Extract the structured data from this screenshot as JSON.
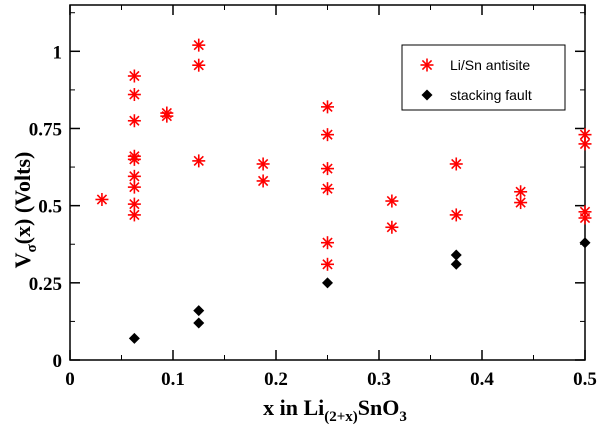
{
  "chart_data": {
    "type": "scatter",
    "xlabel_main": "x in Li",
    "xlabel_sub": "(2+x)",
    "xlabel_tail": "SnO",
    "xlabel_tail_sub": "3",
    "ylabel_main": "V",
    "ylabel_sub": "σ",
    "ylabel_tail": "(x)  (Volts)",
    "xlim": [
      0,
      0.5
    ],
    "ylim": [
      0,
      1.15
    ],
    "x_ticks": [
      0,
      0.1,
      0.2,
      0.3,
      0.4,
      0.5
    ],
    "x_tick_labels": [
      "0",
      "0.1",
      "0.2",
      "0.3",
      "0.4",
      "0.5"
    ],
    "y_ticks": [
      0,
      0.25,
      0.5,
      0.75,
      1
    ],
    "y_tick_labels": [
      "0",
      "0.25",
      "0.5",
      "0.75",
      "1"
    ],
    "legend_position": "top-right",
    "series": [
      {
        "name": "Li/Sn antisite",
        "marker": "asterisk",
        "color": "#ff0000",
        "points": [
          [
            0.031,
            0.52
          ],
          [
            0.0625,
            0.92
          ],
          [
            0.0625,
            0.86
          ],
          [
            0.0625,
            0.775
          ],
          [
            0.0625,
            0.66
          ],
          [
            0.0625,
            0.65
          ],
          [
            0.0625,
            0.595
          ],
          [
            0.0625,
            0.56
          ],
          [
            0.0625,
            0.505
          ],
          [
            0.0625,
            0.47
          ],
          [
            0.094,
            0.8
          ],
          [
            0.094,
            0.79
          ],
          [
            0.125,
            1.02
          ],
          [
            0.125,
            0.955
          ],
          [
            0.125,
            0.645
          ],
          [
            0.1875,
            0.635
          ],
          [
            0.1875,
            0.58
          ],
          [
            0.25,
            0.82
          ],
          [
            0.25,
            0.73
          ],
          [
            0.25,
            0.62
          ],
          [
            0.25,
            0.555
          ],
          [
            0.25,
            0.38
          ],
          [
            0.25,
            0.31
          ],
          [
            0.3125,
            0.515
          ],
          [
            0.3125,
            0.43
          ],
          [
            0.375,
            0.635
          ],
          [
            0.375,
            0.47
          ],
          [
            0.4375,
            0.545
          ],
          [
            0.4375,
            0.51
          ],
          [
            0.5,
            0.73
          ],
          [
            0.5,
            0.7
          ],
          [
            0.5,
            0.48
          ],
          [
            0.5,
            0.46
          ]
        ]
      },
      {
        "name": "stacking fault",
        "marker": "diamond",
        "color": "#000000",
        "points": [
          [
            0.0625,
            0.07
          ],
          [
            0.125,
            0.16
          ],
          [
            0.125,
            0.12
          ],
          [
            0.25,
            0.25
          ],
          [
            0.375,
            0.34
          ],
          [
            0.375,
            0.31
          ],
          [
            0.5,
            0.38
          ]
        ]
      }
    ]
  }
}
